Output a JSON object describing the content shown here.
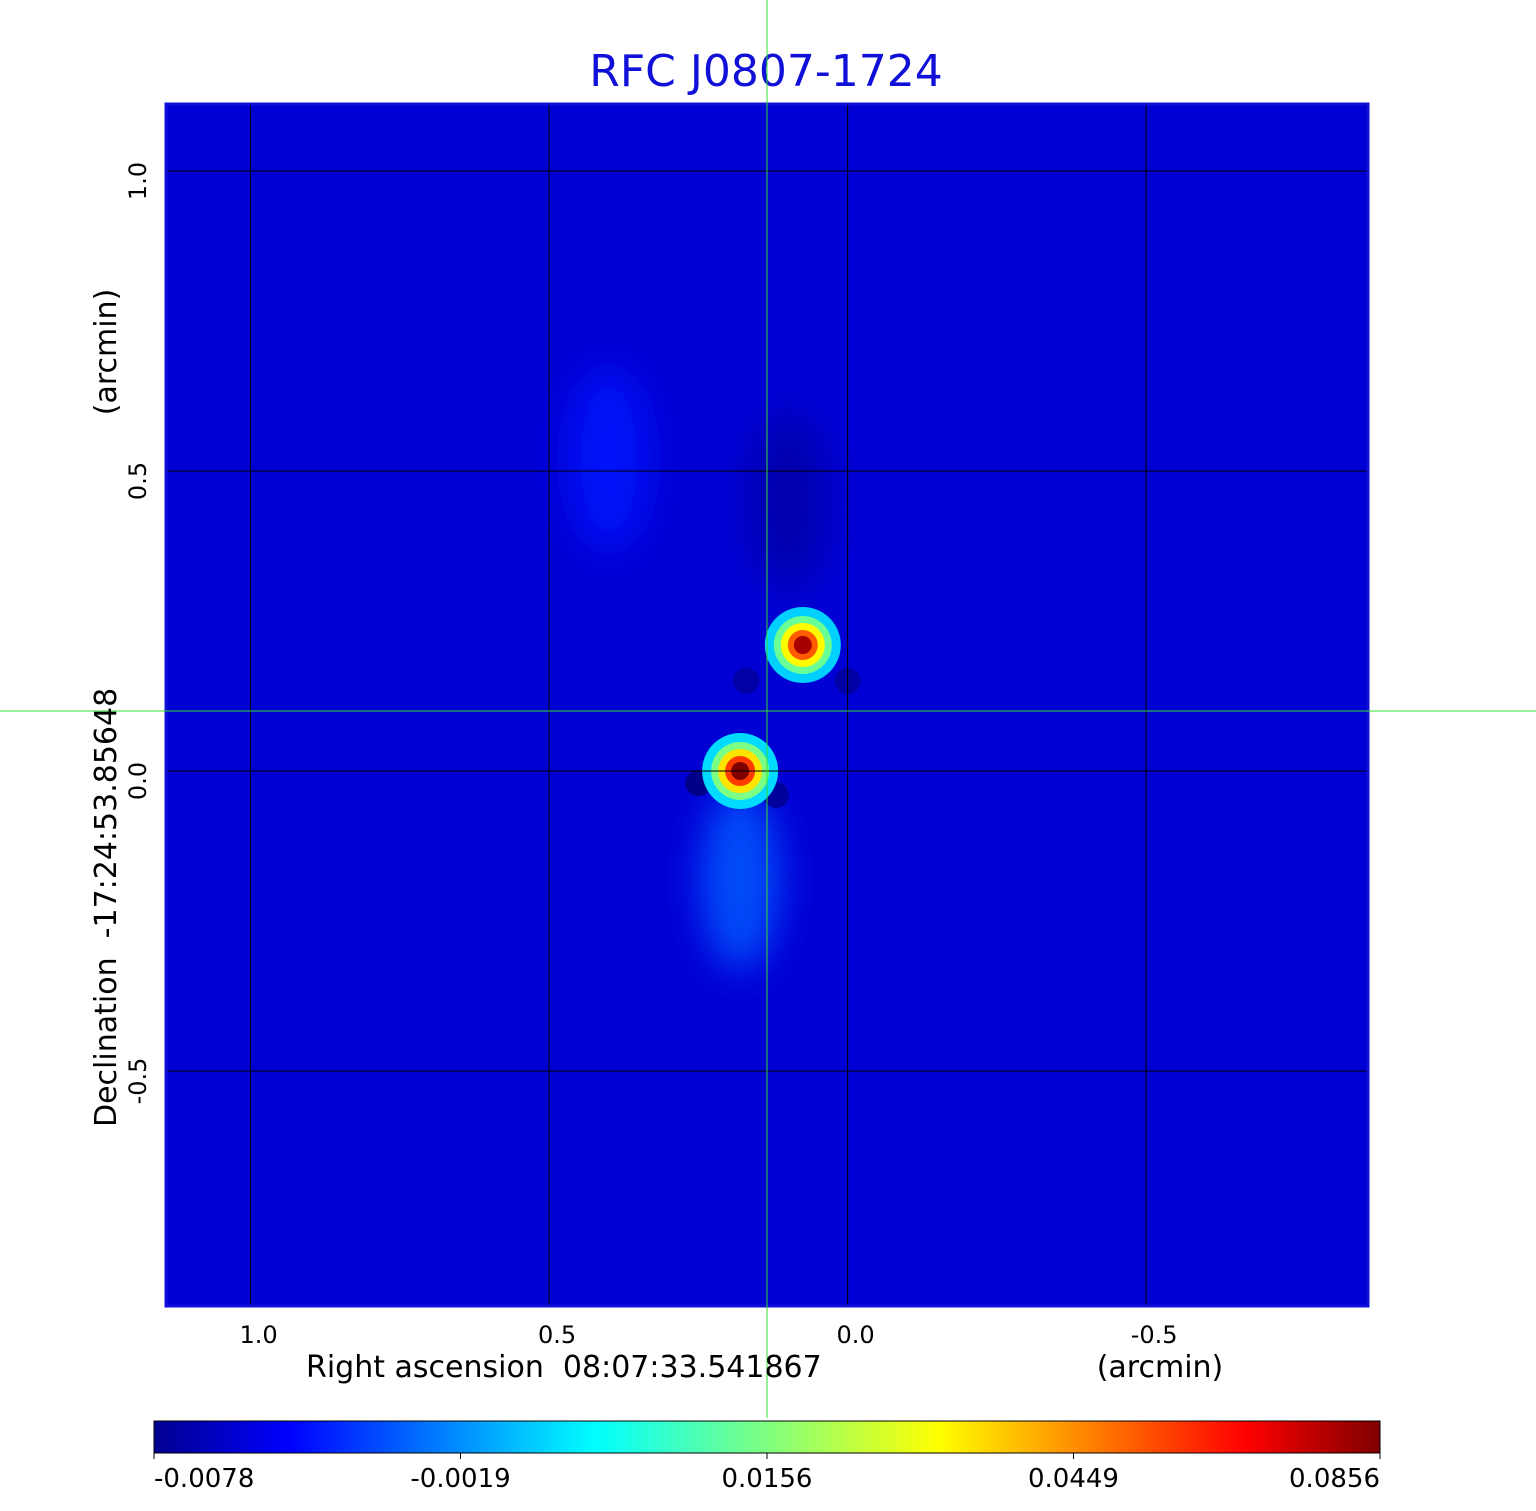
{
  "chart_data": {
    "type": "heatmap",
    "title": "RFC J0807-1724",
    "xlabel": "Right ascension  08:07:33.541867",
    "xlabel_units": "(arcmin)",
    "ylabel": "Declination  -17:24:53.85648",
    "ylabel_units": "(arcmin)",
    "x_ticks": [
      "1.0",
      "0.5",
      "0.0",
      "-0.5"
    ],
    "x_tick_values": [
      1.0,
      0.5,
      0.0,
      -0.5
    ],
    "y_ticks": [
      "1.0",
      "0.5",
      "0.0",
      "-0.5"
    ],
    "y_tick_values": [
      1.0,
      0.5,
      0.0,
      -0.5
    ],
    "xlim": [
      1.14,
      -0.87
    ],
    "ylim": [
      -0.89,
      1.11
    ],
    "grid": true,
    "crosshair": {
      "x": 0.135,
      "y": 0.1
    },
    "colormap": "jet",
    "colorbar_ticks": [
      "-0.0078",
      "-0.0019",
      "0.0156",
      "0.0449",
      "0.0856"
    ],
    "colorbar_tick_values": [
      -0.0078,
      -0.0019,
      0.0156,
      0.0449,
      0.0856
    ],
    "colorbar_range": [
      -0.0078,
      0.0856
    ],
    "colorbar_placement": "bottom",
    "background_level": 0.0,
    "sources": [
      {
        "x": 0.18,
        "y": 0.0,
        "peak": 0.0856
      },
      {
        "x": 0.075,
        "y": 0.21,
        "peak": 0.082
      }
    ],
    "negative_features": [
      {
        "x": 0.25,
        "y": -0.02,
        "value": -0.0078
      },
      {
        "x": 0.12,
        "y": -0.04,
        "value": -0.006
      },
      {
        "x": 0.17,
        "y": 0.15,
        "value": -0.005
      },
      {
        "x": 0.0,
        "y": 0.15,
        "value": -0.005
      }
    ],
    "extended_features": [
      {
        "x": 0.18,
        "y": -0.18,
        "value": 0.012
      },
      {
        "x": 0.4,
        "y": 0.52,
        "value": 0.006
      },
      {
        "x": 0.1,
        "y": 0.45,
        "value": -0.004
      }
    ]
  },
  "colors": {
    "title": "#1010d8",
    "frame": "#1010d8",
    "crosshair": "#33dd33",
    "grid": "#000000"
  }
}
